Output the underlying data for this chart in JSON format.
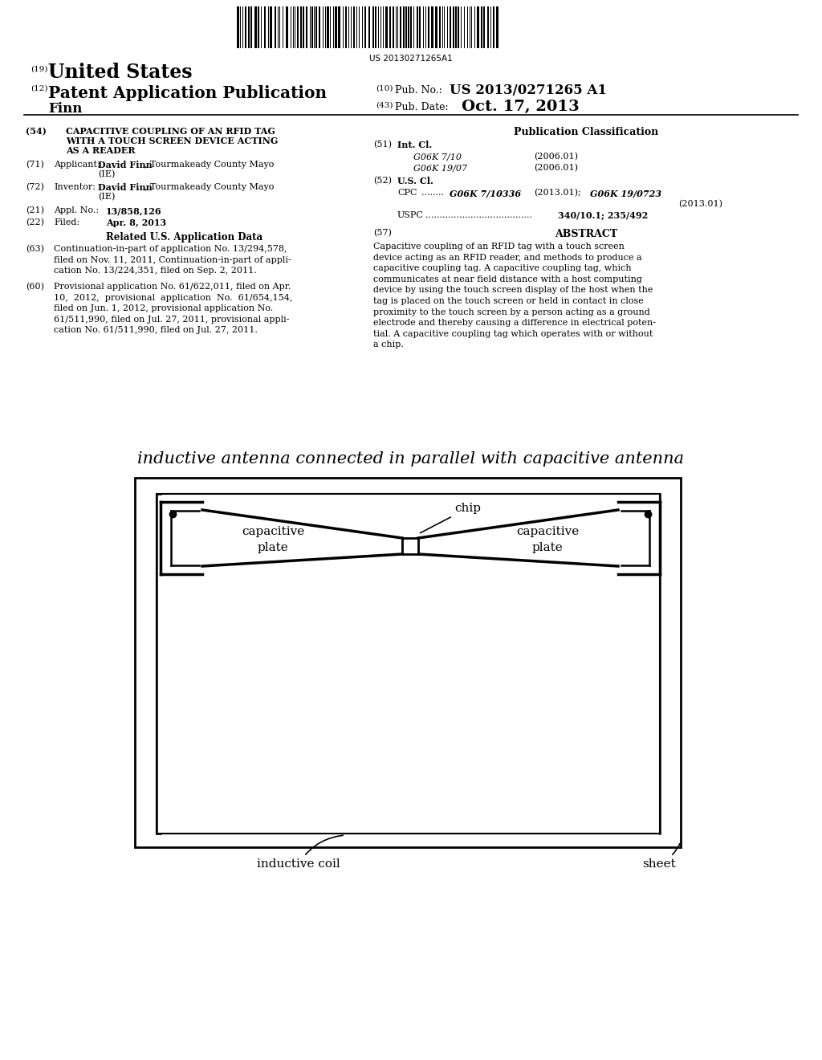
{
  "bg_color": "#ffffff",
  "barcode_text": "US 20130271265A1",
  "pub_no_label": "(10) Pub. No.:",
  "pub_no": "US 2013/0271265 A1",
  "pub_date_label": "(43) Pub. Date:",
  "pub_date": "Oct. 17, 2013",
  "inventor_name": "Finn",
  "field54_title": "CAPACITIVE COUPLING OF AN RFID TAG\nWITH A TOUCH SCREEN DEVICE ACTING\nAS A READER",
  "field63_text": "Continuation-in-part of application No. 13/294,578,\nfiled on Nov. 11, 2011, Continuation-in-part of appli-\ncation No. 13/224,351, filed on Sep. 2, 2011.",
  "field60_text": "Provisional application No. 61/622,011, filed on Apr.\n10,  2012,  provisional  application  No.  61/654,154,\nfiled on Jun. 1, 2012, provisional application No.\n61/511,990, filed on Jul. 27, 2011, provisional appli-\ncation No. 61/511,990, filed on Jul. 27, 2011.",
  "abstract_text": "Capacitive coupling of an RFID tag with a touch screen\ndevice acting as an RFID reader, and methods to produce a\ncapacitive coupling tag. A capacitive coupling tag, which\ncommunicates at near field distance with a host computing\ndevice by using the touch screen display of the host when the\ntag is placed on the touch screen or held in contact in close\nproximity to the touch screen by a person acting as a ground\nelectrode and thereby causing a difference in electrical poten-\ntial. A capacitive coupling tag which operates with or without\na chip.",
  "diagram_title": "inductive antenna connected in parallel with capacitive antenna",
  "label_chip": "chip",
  "label_cap_left": "capacitive\nplate",
  "label_cap_right": "capacitive\nplate",
  "label_coil": "inductive coil",
  "label_sheet": "sheet"
}
